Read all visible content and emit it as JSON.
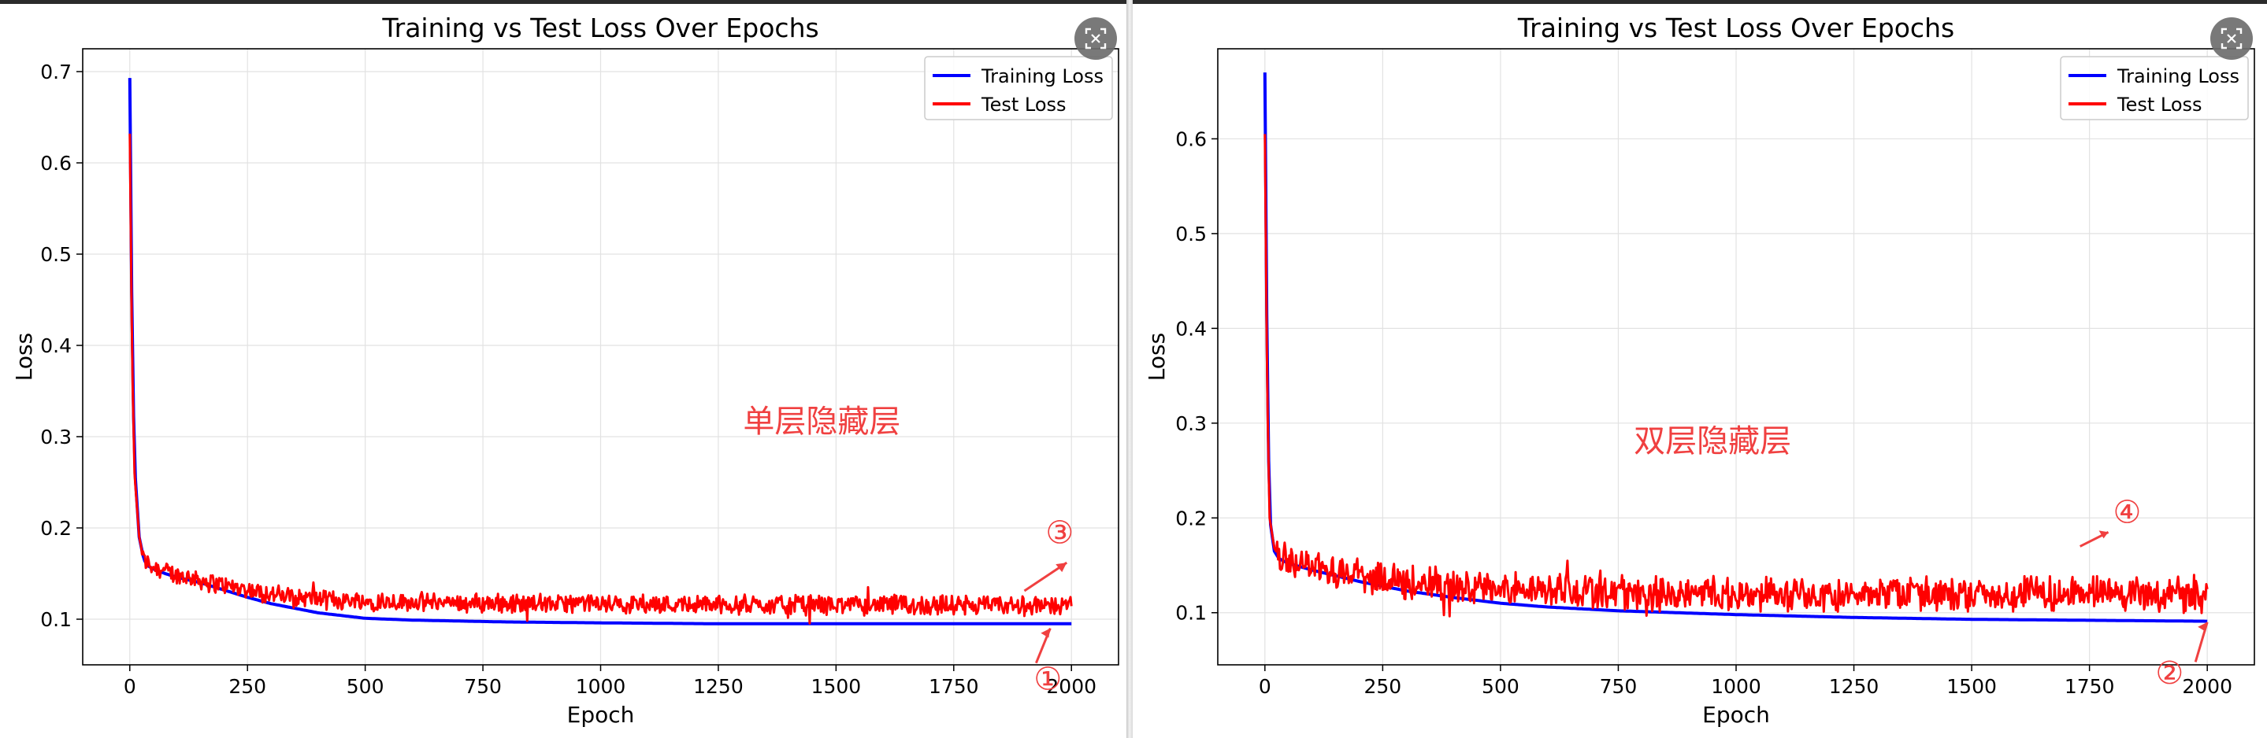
{
  "chart_data": [
    {
      "type": "line",
      "title": "Training vs Test Loss Over Epochs",
      "xlabel": "Epoch",
      "ylabel": "Loss",
      "xlim": [
        -100,
        2100
      ],
      "ylim": [
        0.05,
        0.725
      ],
      "xticks": [
        0,
        250,
        500,
        750,
        1000,
        1250,
        1500,
        1750,
        2000
      ],
      "yticks": [
        0.1,
        0.2,
        0.3,
        0.4,
        0.5,
        0.6,
        0.7
      ],
      "grid": true,
      "legend_position": "top-right",
      "colors": {
        "train": "#0000ff",
        "test": "#ff0000",
        "annotation": "#f04040"
      },
      "series": [
        {
          "name": "Training Loss",
          "x": [
            0,
            5,
            10,
            20,
            30,
            40,
            50,
            75,
            100,
            150,
            200,
            250,
            300,
            400,
            500,
            600,
            700,
            800,
            1000,
            1250,
            1500,
            1750,
            2000
          ],
          "y": [
            0.693,
            0.4,
            0.27,
            0.19,
            0.165,
            0.158,
            0.155,
            0.15,
            0.146,
            0.14,
            0.132,
            0.124,
            0.117,
            0.107,
            0.101,
            0.099,
            0.098,
            0.097,
            0.096,
            0.095,
            0.095,
            0.095,
            0.095
          ]
        },
        {
          "name": "Test Loss",
          "x": [
            0,
            5,
            10,
            20,
            30,
            40,
            50,
            75,
            100,
            150,
            200,
            250,
            300,
            400,
            500,
            600,
            700,
            800,
            1000,
            1250,
            1500,
            1750,
            2000
          ],
          "y": [
            0.632,
            0.38,
            0.26,
            0.19,
            0.165,
            0.16,
            0.158,
            0.153,
            0.148,
            0.143,
            0.137,
            0.132,
            0.127,
            0.122,
            0.12,
            0.119,
            0.118,
            0.117,
            0.117,
            0.116,
            0.116,
            0.115,
            0.115
          ],
          "noise_amplitude": 0.012
        }
      ],
      "annotations": [
        {
          "text": "单层隐藏层",
          "x": 1470,
          "y": 0.305
        },
        {
          "text": "③",
          "x": 1975,
          "y": 0.183
        },
        {
          "text": "①",
          "x": 1950,
          "y": 0.023
        }
      ]
    },
    {
      "type": "line",
      "title": "Training vs Test Loss Over Epochs",
      "xlabel": "Epoch",
      "ylabel": "Loss",
      "xlim": [
        -100,
        2100
      ],
      "ylim": [
        0.045,
        0.695
      ],
      "xticks": [
        0,
        250,
        500,
        750,
        1000,
        1250,
        1500,
        1750,
        2000
      ],
      "yticks": [
        0.1,
        0.2,
        0.3,
        0.4,
        0.5,
        0.6
      ],
      "grid": true,
      "legend_position": "top-right",
      "colors": {
        "train": "#0000ff",
        "test": "#ff0000",
        "annotation": "#f04040"
      },
      "series": [
        {
          "name": "Training Loss",
          "x": [
            0,
            5,
            10,
            20,
            30,
            50,
            100,
            200,
            300,
            400,
            500,
            600,
            750,
            1000,
            1250,
            1500,
            1750,
            2000
          ],
          "y": [
            0.67,
            0.35,
            0.2,
            0.165,
            0.157,
            0.152,
            0.145,
            0.133,
            0.123,
            0.116,
            0.11,
            0.106,
            0.102,
            0.098,
            0.095,
            0.093,
            0.092,
            0.091
          ]
        },
        {
          "name": "Test Loss",
          "x": [
            0,
            5,
            10,
            20,
            30,
            50,
            100,
            200,
            300,
            400,
            500,
            600,
            750,
            1000,
            1250,
            1500,
            1750,
            2000
          ],
          "y": [
            0.605,
            0.33,
            0.2,
            0.168,
            0.16,
            0.155,
            0.15,
            0.14,
            0.133,
            0.128,
            0.125,
            0.123,
            0.121,
            0.12,
            0.12,
            0.12,
            0.12,
            0.12
          ],
          "noise_amplitude": 0.02
        }
      ],
      "annotations": [
        {
          "text": "双层隐藏层",
          "x": 950,
          "y": 0.27
        },
        {
          "text": "④",
          "x": 1830,
          "y": 0.195
        },
        {
          "text": "②",
          "x": 1920,
          "y": 0.025
        }
      ]
    }
  ]
}
